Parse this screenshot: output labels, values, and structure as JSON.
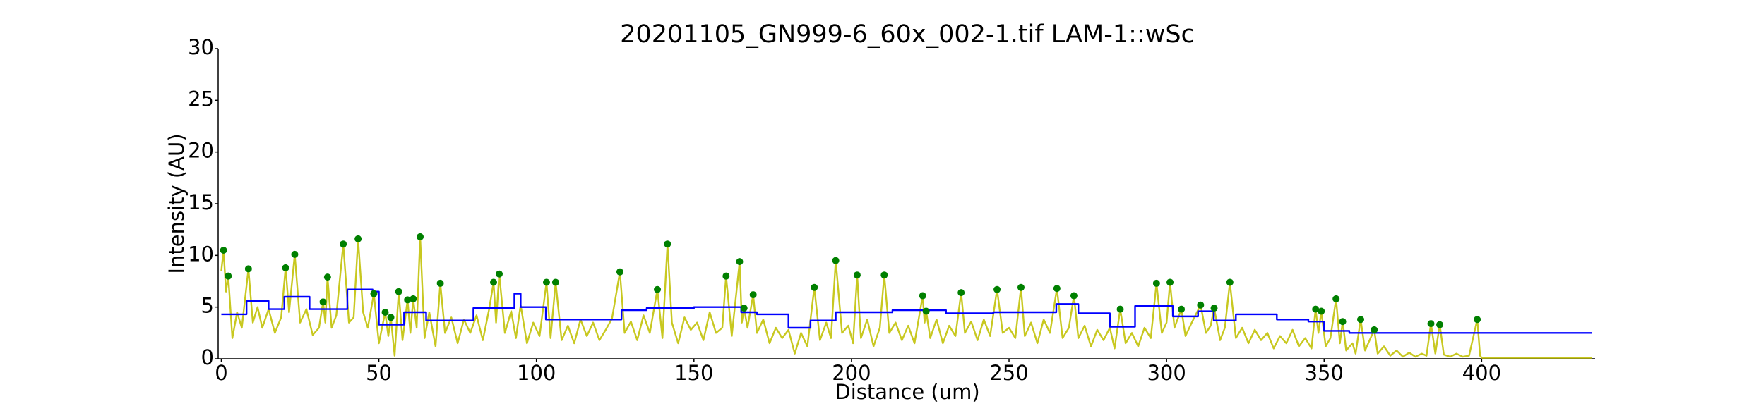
{
  "chart_data": {
    "type": "line",
    "title": "20201105_GN999-6_60x_002-1.tif LAM-1::wSc",
    "x_label": "Distance (um)",
    "y_label": "Intensity (AU)",
    "xlim": [
      -1,
      436
    ],
    "ylim": [
      0,
      30
    ],
    "xticks": [
      0,
      50,
      100,
      150,
      200,
      250,
      300,
      350,
      400
    ],
    "yticks": [
      0,
      5,
      10,
      15,
      20,
      25,
      30
    ],
    "series": [
      {
        "type": "line",
        "color": "#c8c820",
        "x": [
          0,
          0.7,
          1.5,
          2.2,
          3.5,
          5,
          6.5,
          8.6,
          10,
          11.5,
          13,
          15,
          17,
          19,
          20.4,
          21.5,
          23.3,
          25,
          27,
          29,
          31,
          32.3,
          33,
          33.7,
          35,
          36.5,
          38.7,
          40.5,
          42,
          43.4,
          45,
          46.5,
          48.4,
          50,
          52,
          53,
          53.8,
          55,
          56.3,
          57.5,
          59.1,
          60,
          60.9,
          62,
          63.1,
          64.5,
          66,
          68,
          69.5,
          71,
          73,
          75,
          77,
          79,
          81,
          83,
          85,
          86.4,
          87.2,
          88.2,
          90,
          92,
          93.5,
          95,
          97,
          99,
          101,
          103.2,
          104.5,
          106.1,
          108,
          110,
          112,
          114,
          116,
          118,
          120,
          122,
          124,
          126.5,
          128,
          130,
          132,
          134,
          136,
          138.4,
          140,
          141.6,
          143,
          145,
          147,
          149,
          151,
          153,
          155,
          157,
          159,
          160.2,
          162,
          164.5,
          165.2,
          165.9,
          167,
          168.8,
          170,
          172,
          174,
          176,
          178,
          180,
          182,
          184,
          186,
          188.2,
          190,
          192,
          193.5,
          195,
          197,
          199,
          200.5,
          201.8,
          203,
          205,
          207,
          209,
          210.4,
          212,
          214,
          216,
          218,
          220,
          222.6,
          223.2,
          223.7,
          225,
          227,
          229,
          231,
          233,
          234.8,
          236,
          238,
          240,
          242,
          244,
          246.2,
          248,
          250,
          252,
          253.8,
          255,
          257,
          259,
          261,
          263,
          265.2,
          267,
          269,
          270.6,
          272,
          274,
          276,
          278,
          280,
          282,
          283.5,
          285.3,
          287,
          289,
          291,
          293,
          295,
          296.8,
          298.5,
          300,
          301.1,
          302.5,
          304.7,
          306,
          308,
          310.8,
          312.5,
          314,
          315.1,
          317,
          318.5,
          320.1,
          322,
          324,
          326,
          328,
          330,
          332,
          334,
          336,
          338,
          340,
          342,
          344,
          346,
          347.3,
          348.2,
          349.1,
          350.5,
          352,
          353.8,
          355,
          355.9,
          357,
          359,
          360,
          361.6,
          363,
          365.9,
          367,
          369,
          371,
          373,
          375,
          377,
          379,
          381,
          382.5,
          383.9,
          385.3,
          386.7,
          388,
          390,
          392,
          394,
          396,
          398.6,
          399.5,
          400,
          435
        ],
        "values": [
          8.5,
          10.5,
          6.5,
          8.0,
          2.0,
          4.5,
          3.0,
          8.7,
          3.5,
          5.0,
          3.0,
          4.8,
          2.5,
          4.0,
          8.8,
          4.5,
          10.1,
          3.5,
          4.8,
          2.3,
          3.0,
          5.5,
          3.5,
          7.9,
          3.0,
          4.2,
          11.1,
          3.5,
          4.0,
          11.6,
          4.5,
          3.0,
          6.3,
          1.5,
          4.5,
          2.2,
          4.0,
          0.3,
          6.5,
          1.8,
          5.7,
          2.5,
          5.8,
          3.0,
          11.8,
          2.0,
          4.5,
          1.2,
          7.3,
          2.5,
          4.0,
          1.5,
          3.8,
          2.5,
          4.2,
          1.8,
          4.8,
          7.4,
          3.5,
          8.2,
          2.5,
          4.6,
          2.0,
          5.2,
          1.5,
          3.5,
          2.2,
          7.4,
          2.0,
          7.4,
          1.8,
          3.2,
          1.5,
          3.8,
          2.2,
          3.5,
          1.8,
          2.8,
          3.9,
          8.4,
          2.5,
          3.6,
          1.8,
          4.2,
          2.5,
          6.7,
          2.0,
          11.1,
          3.5,
          1.5,
          4.0,
          2.8,
          3.5,
          1.8,
          4.5,
          2.5,
          3.0,
          8.0,
          2.2,
          9.4,
          3.5,
          4.9,
          3.0,
          6.2,
          2.5,
          3.8,
          1.5,
          3.0,
          2.0,
          2.8,
          0.5,
          2.5,
          1.2,
          6.9,
          1.8,
          3.5,
          2.0,
          9.5,
          2.5,
          3.2,
          1.5,
          8.1,
          2.0,
          3.8,
          1.2,
          3.0,
          8.1,
          2.5,
          3.5,
          1.8,
          3.2,
          1.5,
          6.1,
          3.5,
          4.6,
          2.0,
          3.8,
          1.5,
          3.2,
          2.2,
          6.4,
          2.5,
          3.6,
          1.8,
          3.8,
          2.2,
          6.7,
          2.5,
          3.0,
          2.0,
          6.9,
          2.2,
          3.5,
          1.5,
          3.8,
          2.5,
          6.8,
          2.0,
          3.0,
          6.1,
          2.0,
          3.2,
          1.2,
          2.8,
          1.8,
          3.0,
          1.0,
          4.8,
          1.5,
          2.5,
          1.2,
          3.0,
          2.0,
          7.3,
          2.5,
          3.5,
          7.4,
          3.0,
          4.8,
          2.2,
          3.5,
          5.2,
          2.5,
          3.2,
          4.9,
          1.8,
          3.0,
          7.4,
          2.0,
          3.0,
          1.5,
          2.8,
          1.8,
          2.5,
          1.0,
          2.2,
          1.5,
          2.8,
          1.2,
          2.0,
          1.0,
          4.8,
          2.5,
          4.6,
          1.2,
          2.0,
          5.8,
          1.5,
          3.6,
          0.8,
          1.5,
          0.5,
          3.8,
          0.8,
          2.8,
          0.5,
          1.2,
          0.3,
          0.8,
          0.2,
          0.6,
          0.2,
          0.5,
          0.3,
          3.4,
          0.5,
          3.3,
          0.4,
          0.2,
          0.5,
          0.2,
          0.3,
          3.8,
          0.3,
          0.1,
          0.1
        ]
      },
      {
        "type": "line",
        "color": "#0000ff",
        "x": [
          0,
          8,
          8,
          15,
          15,
          20,
          20,
          28,
          28,
          40,
          40,
          48,
          48,
          50,
          50,
          58,
          58,
          65,
          65,
          80,
          80,
          93,
          93,
          95,
          95,
          103,
          103,
          127,
          127,
          135,
          135,
          150,
          150,
          165,
          165,
          170,
          170,
          180,
          180,
          187,
          187,
          195,
          195,
          213,
          213,
          230,
          230,
          245,
          245,
          265,
          265,
          272,
          272,
          282,
          282,
          290,
          290,
          302,
          302,
          310,
          310,
          315,
          315,
          322,
          322,
          335,
          335,
          345,
          345,
          350,
          350,
          358,
          358,
          435
        ],
        "values": [
          4.3,
          4.3,
          5.6,
          5.6,
          4.8,
          4.8,
          6.0,
          6.0,
          4.8,
          4.8,
          6.7,
          6.7,
          6.5,
          6.5,
          3.3,
          3.3,
          4.5,
          4.5,
          3.7,
          3.7,
          4.9,
          4.9,
          6.3,
          6.3,
          5.0,
          5.0,
          3.8,
          3.8,
          4.7,
          4.7,
          4.9,
          4.9,
          5.0,
          5.0,
          4.5,
          4.5,
          4.3,
          4.3,
          3.0,
          3.0,
          3.7,
          3.7,
          4.5,
          4.5,
          4.7,
          4.7,
          4.4,
          4.4,
          4.5,
          4.5,
          5.3,
          5.3,
          4.4,
          4.4,
          3.1,
          3.1,
          5.1,
          5.1,
          4.1,
          4.1,
          4.6,
          4.6,
          3.7,
          3.7,
          4.3,
          4.3,
          3.8,
          3.8,
          3.6,
          3.6,
          2.7,
          2.7,
          2.5,
          2.5
        ]
      },
      {
        "type": "scatter",
        "color": "#008000",
        "x": [
          0.7,
          2.2,
          8.6,
          20.4,
          23.3,
          32.3,
          33.7,
          38.7,
          43.4,
          48.4,
          52,
          53.8,
          56.3,
          59.1,
          60.9,
          63.1,
          69.5,
          86.4,
          88.2,
          103.2,
          106.1,
          126.5,
          138.4,
          141.6,
          160.2,
          164.5,
          165.9,
          168.8,
          188.2,
          195,
          201.8,
          210.4,
          222.6,
          223.7,
          234.8,
          246.2,
          253.8,
          265.2,
          270.6,
          285.3,
          296.8,
          301.1,
          304.7,
          310.8,
          315.1,
          320.1,
          347.3,
          349.1,
          353.8,
          355.9,
          361.6,
          365.9,
          383.9,
          386.7,
          398.6
        ],
        "values": [
          10.5,
          8.0,
          8.7,
          8.8,
          10.1,
          5.5,
          7.9,
          11.1,
          11.6,
          6.3,
          4.5,
          4.0,
          6.5,
          5.7,
          5.8,
          11.8,
          7.3,
          7.4,
          8.2,
          7.4,
          7.4,
          8.4,
          6.7,
          11.1,
          8.0,
          9.4,
          4.9,
          6.2,
          6.9,
          9.5,
          8.1,
          8.1,
          6.1,
          4.6,
          6.4,
          6.7,
          6.9,
          6.8,
          6.1,
          4.8,
          7.3,
          7.4,
          4.8,
          5.2,
          4.9,
          7.4,
          4.8,
          4.6,
          5.8,
          3.6,
          3.8,
          2.8,
          3.4,
          3.3,
          3.8
        ]
      }
    ]
  }
}
